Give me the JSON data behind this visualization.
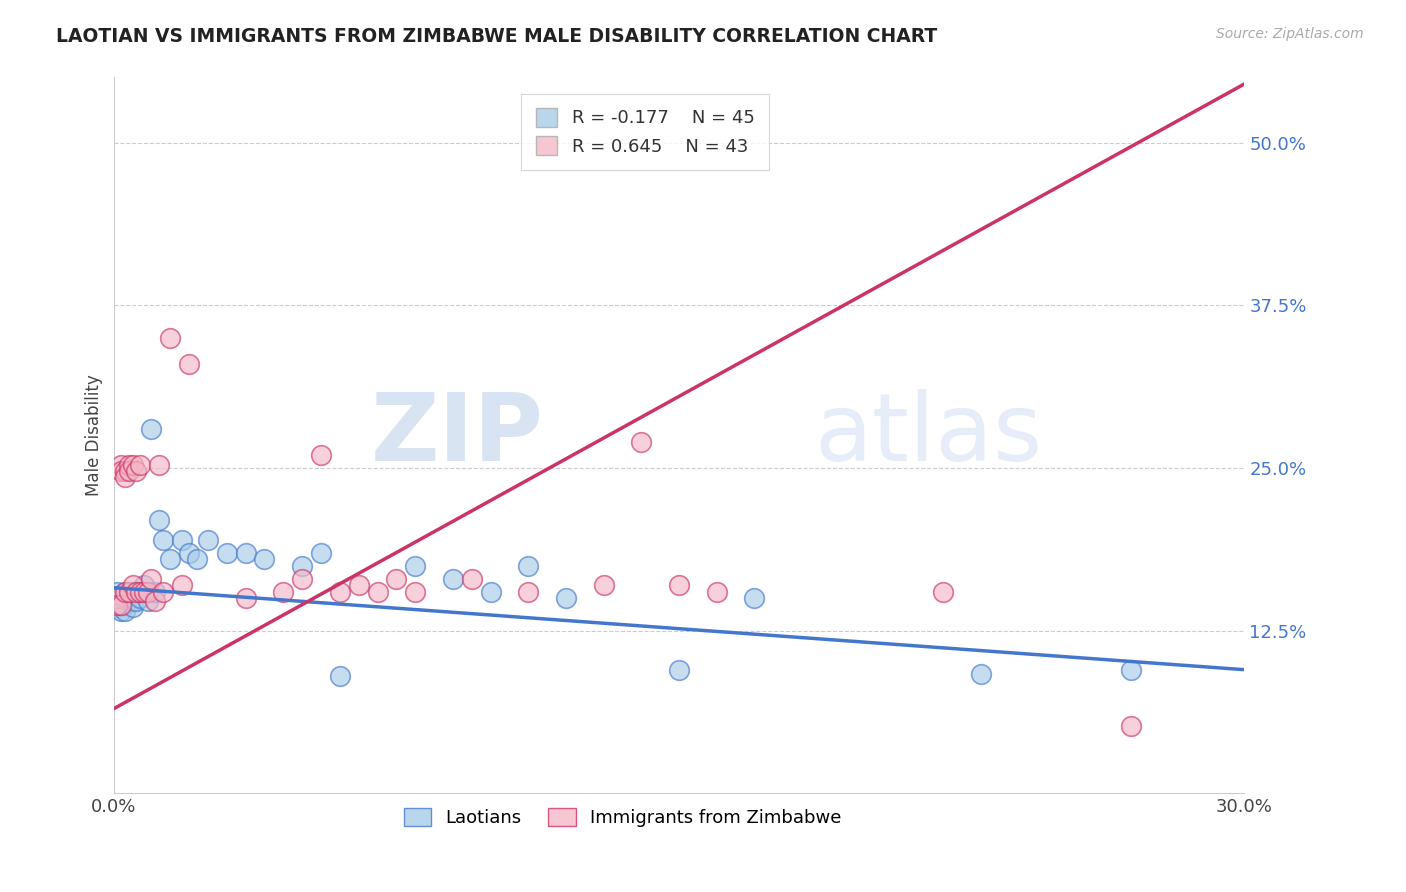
{
  "title": "LAOTIAN VS IMMIGRANTS FROM ZIMBABWE MALE DISABILITY CORRELATION CHART",
  "source": "Source: ZipAtlas.com",
  "ylabel": "Male Disability",
  "xlim": [
    0.0,
    0.3
  ],
  "ylim": [
    0.0,
    0.55
  ],
  "x_ticks": [
    0.0,
    0.3
  ],
  "x_tick_labels": [
    "0.0%",
    "30.0%"
  ],
  "y_ticks": [
    0.0,
    0.125,
    0.25,
    0.375,
    0.5
  ],
  "y_tick_labels": [
    "",
    "12.5%",
    "25.0%",
    "37.5%",
    "50.0%"
  ],
  "legend_labels": [
    "Laotians",
    "Immigrants from Zimbabwe"
  ],
  "legend_R": [
    "R = -0.177",
    "R = 0.645"
  ],
  "legend_N": [
    "N = 45",
    "N = 43"
  ],
  "blue_color": "#a8cce8",
  "pink_color": "#f4b8c8",
  "blue_line_color": "#4477CC",
  "pink_line_color": "#CC3366",
  "watermark_zip": "ZIP",
  "watermark_atlas": "atlas",
  "background_color": "#ffffff",
  "grid_color": "#cccccc",
  "laotian_x": [
    0.001,
    0.001,
    0.001,
    0.002,
    0.002,
    0.002,
    0.003,
    0.003,
    0.003,
    0.003,
    0.004,
    0.004,
    0.005,
    0.005,
    0.005,
    0.006,
    0.006,
    0.007,
    0.007,
    0.008,
    0.009,
    0.01,
    0.011,
    0.012,
    0.013,
    0.015,
    0.018,
    0.02,
    0.022,
    0.025,
    0.03,
    0.035,
    0.04,
    0.05,
    0.055,
    0.06,
    0.08,
    0.09,
    0.1,
    0.11,
    0.12,
    0.15,
    0.17,
    0.23,
    0.27
  ],
  "laotian_y": [
    0.155,
    0.148,
    0.143,
    0.15,
    0.145,
    0.14,
    0.155,
    0.15,
    0.145,
    0.14,
    0.152,
    0.148,
    0.155,
    0.148,
    0.143,
    0.155,
    0.148,
    0.155,
    0.15,
    0.16,
    0.148,
    0.28,
    0.155,
    0.21,
    0.195,
    0.18,
    0.195,
    0.185,
    0.18,
    0.195,
    0.185,
    0.185,
    0.18,
    0.175,
    0.185,
    0.09,
    0.175,
    0.165,
    0.155,
    0.175,
    0.15,
    0.095,
    0.15,
    0.092,
    0.095
  ],
  "zimbabwe_x": [
    0.001,
    0.001,
    0.002,
    0.002,
    0.002,
    0.003,
    0.003,
    0.003,
    0.004,
    0.004,
    0.004,
    0.005,
    0.005,
    0.006,
    0.006,
    0.007,
    0.007,
    0.008,
    0.009,
    0.01,
    0.011,
    0.012,
    0.013,
    0.015,
    0.018,
    0.02,
    0.035,
    0.045,
    0.05,
    0.055,
    0.06,
    0.065,
    0.07,
    0.075,
    0.08,
    0.095,
    0.11,
    0.13,
    0.14,
    0.15,
    0.16,
    0.22,
    0.27
  ],
  "zimbabwe_y": [
    0.15,
    0.145,
    0.252,
    0.248,
    0.145,
    0.248,
    0.243,
    0.155,
    0.252,
    0.248,
    0.155,
    0.252,
    0.16,
    0.248,
    0.155,
    0.155,
    0.252,
    0.155,
    0.155,
    0.165,
    0.148,
    0.252,
    0.155,
    0.35,
    0.16,
    0.33,
    0.15,
    0.155,
    0.165,
    0.26,
    0.155,
    0.16,
    0.155,
    0.165,
    0.155,
    0.165,
    0.155,
    0.16,
    0.27,
    0.16,
    0.155,
    0.155,
    0.052
  ]
}
